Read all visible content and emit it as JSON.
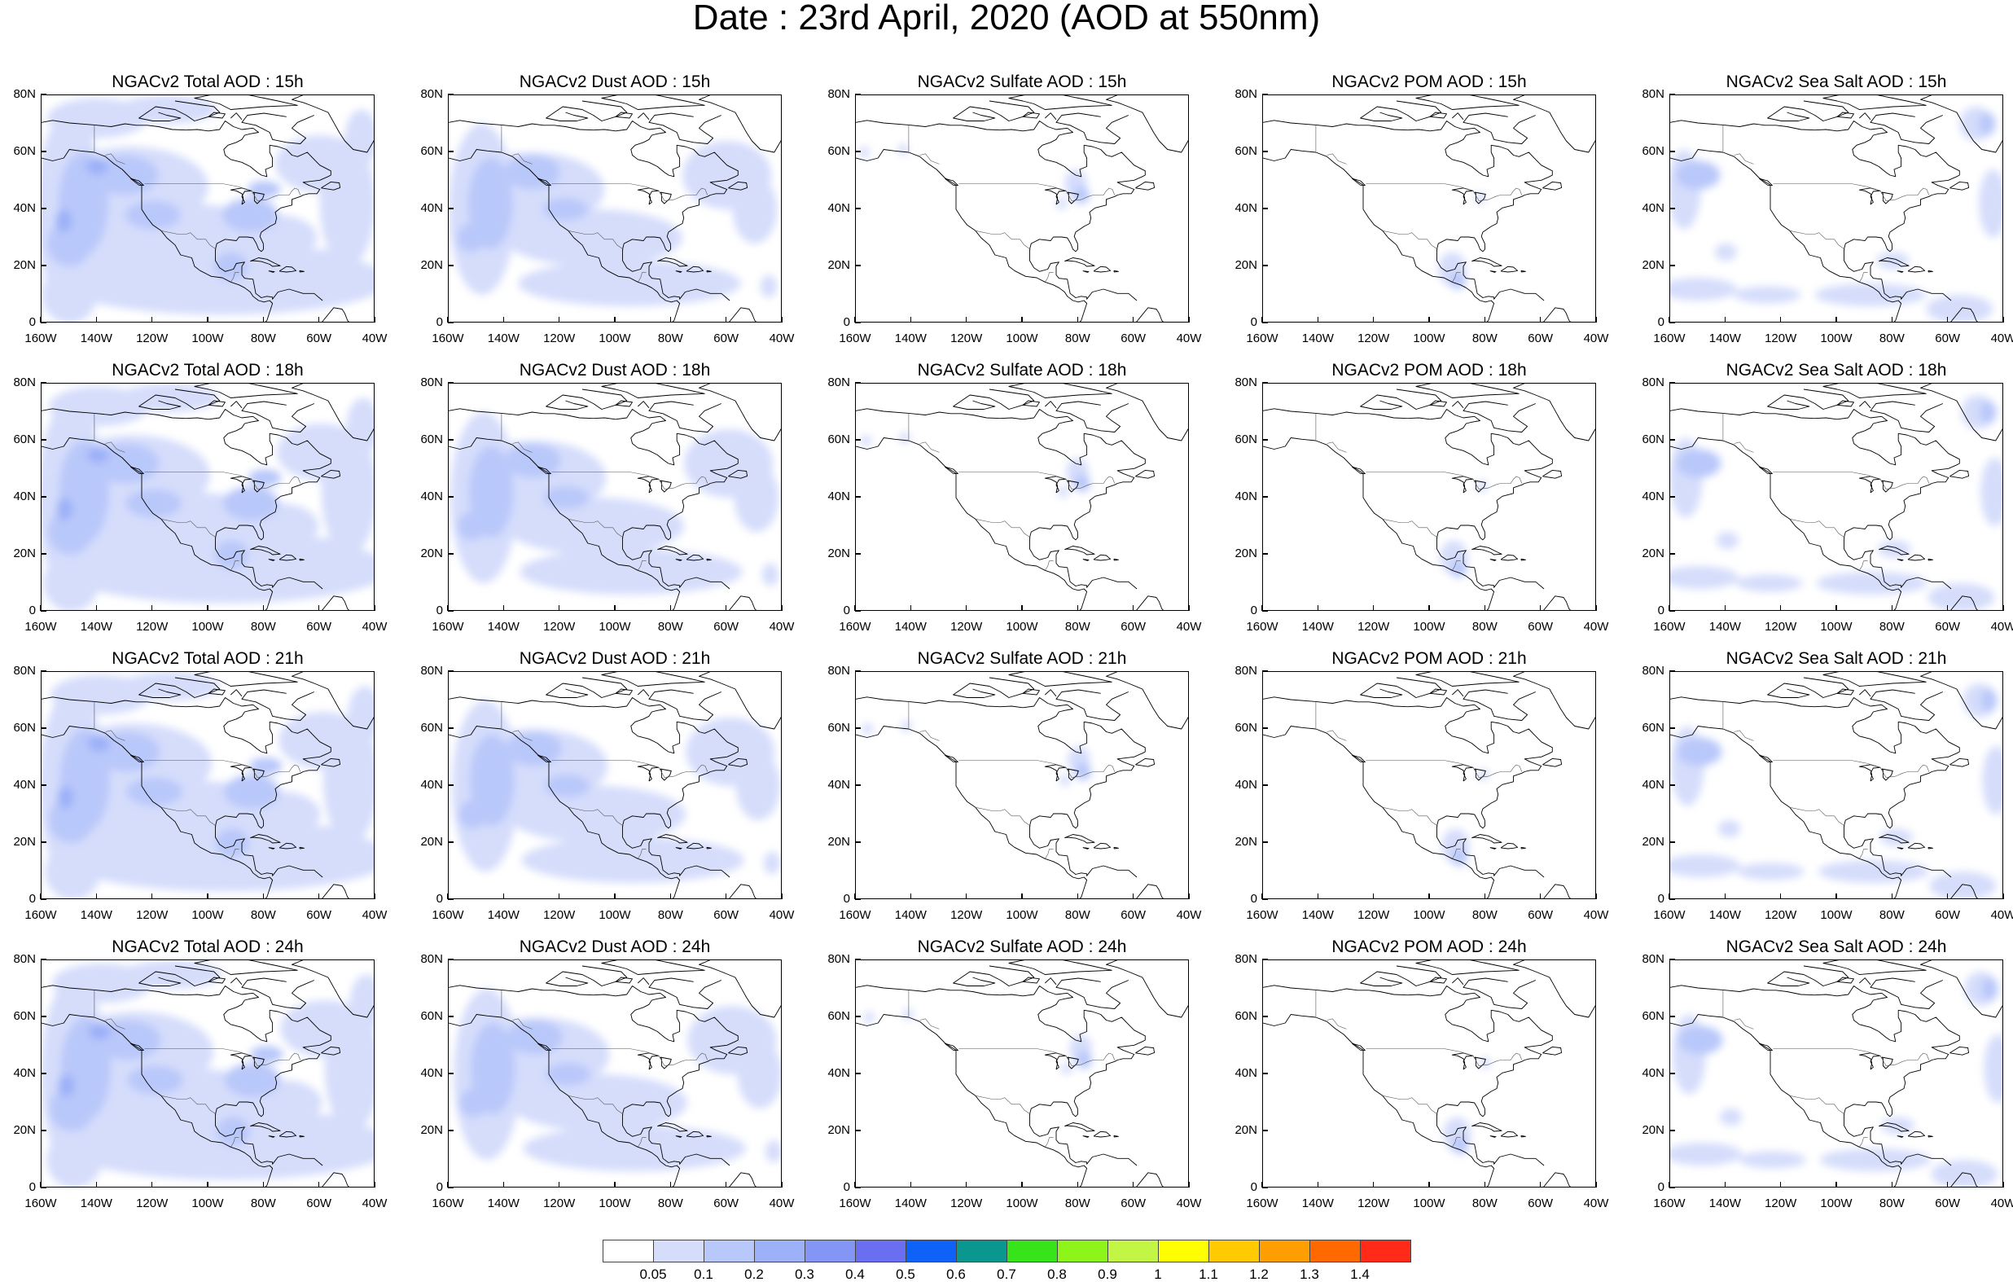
{
  "title": "Date : 23rd April, 2020 (AOD at 550nm)",
  "columns": [
    {
      "key": "total",
      "label": "NGACv2 Total AOD"
    },
    {
      "key": "dust",
      "label": "NGACv2 Dust AOD"
    },
    {
      "key": "sulfate",
      "label": "NGACv2 Sulfate AOD"
    },
    {
      "key": "pom",
      "label": "NGACv2 POM AOD"
    },
    {
      "key": "seasalt",
      "label": "NGACv2 Sea Salt AOD"
    }
  ],
  "panel_titles": [
    [
      "NGACv2 Total AOD : 15h",
      "NGACv2 Dust AOD : 15h",
      "NGACv2 Sulfate AOD : 15h",
      "NGACv2 POM AOD : 15h",
      "NGACv2 Sea Salt AOD : 15h"
    ],
    [
      "NGACv2 Total AOD : 18h",
      "NGACv2 Dust AOD : 18h",
      "NGACv2 Sulfate AOD : 18h",
      "NGACv2 POM AOD : 18h",
      "NGACv2 Sea Salt AOD : 18h"
    ],
    [
      "NGACv2 Total AOD : 21h",
      "NGACv2 Dust AOD : 21h",
      "NGACv2 Sulfate AOD : 21h",
      "NGACv2 POM AOD : 21h",
      "NGACv2 Sea Salt AOD : 21h"
    ],
    [
      "NGACv2 Total AOD : 24h",
      "NGACv2 Dust AOD : 24h",
      "NGACv2 Sulfate AOD : 24h",
      "NGACv2 POM AOD : 24h",
      "NGACv2 Sea Salt  AOD : 24h"
    ]
  ],
  "lat_ticks": [
    "80N",
    "60N",
    "40N",
    "20N",
    "0"
  ],
  "lon_ticks": [
    "160W",
    "140W",
    "120W",
    "100W",
    "80W",
    "60W",
    "40W"
  ],
  "map_extent": {
    "lon_min": -160,
    "lon_max": -40,
    "lat_min": 0,
    "lat_max": 80
  },
  "legend": {
    "colors": [
      "#ffffff",
      "#d5ddfb",
      "#b9c8fa",
      "#9db1f8",
      "#8395f5",
      "#6a6ef0",
      "#0f62f7",
      "#0a9790",
      "#37e41a",
      "#8df51a",
      "#c3f545",
      "#ffff00",
      "#ffcb00",
      "#ff9e00",
      "#ff6900",
      "#ff2a18"
    ],
    "labels": [
      "0.05",
      "0.1",
      "0.2",
      "0.3",
      "0.4",
      "0.5",
      "0.6",
      "0.7",
      "0.8",
      "0.9",
      "1",
      "1.1",
      "1.2",
      "1.3",
      "1.4"
    ]
  },
  "colors": {
    "light": "#d5ddfb",
    "mid": "#b9c8fa",
    "dark": "#9db1f8",
    "coast": "#000000"
  }
}
